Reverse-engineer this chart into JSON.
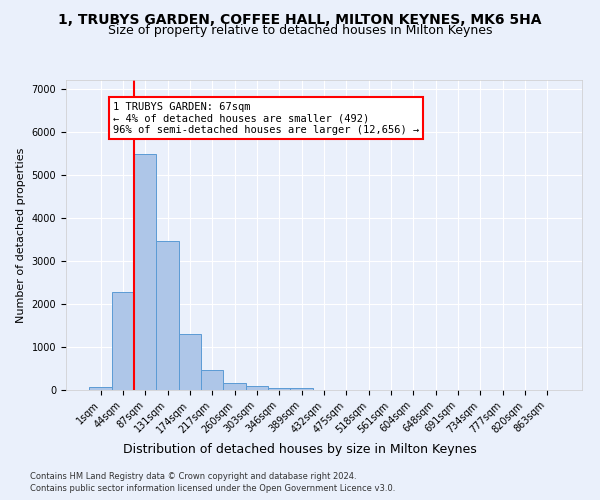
{
  "title_line1": "1, TRUBYS GARDEN, COFFEE HALL, MILTON KEYNES, MK6 5HA",
  "title_line2": "Size of property relative to detached houses in Milton Keynes",
  "xlabel": "Distribution of detached houses by size in Milton Keynes",
  "ylabel": "Number of detached properties",
  "footnote1": "Contains HM Land Registry data © Crown copyright and database right 2024.",
  "footnote2": "Contains public sector information licensed under the Open Government Licence v3.0.",
  "bar_labels": [
    "1sqm",
    "44sqm",
    "87sqm",
    "131sqm",
    "174sqm",
    "217sqm",
    "260sqm",
    "303sqm",
    "346sqm",
    "389sqm",
    "432sqm",
    "475sqm",
    "518sqm",
    "561sqm",
    "604sqm",
    "648sqm",
    "691sqm",
    "734sqm",
    "777sqm",
    "820sqm",
    "863sqm"
  ],
  "bar_values": [
    80,
    2280,
    5470,
    3460,
    1310,
    470,
    160,
    90,
    55,
    35,
    0,
    0,
    0,
    0,
    0,
    0,
    0,
    0,
    0,
    0,
    0
  ],
  "bar_color": "#aec6e8",
  "bar_edgecolor": "#5b9bd5",
  "vline_x": 1.5,
  "vline_color": "red",
  "annotation_text": "1 TRUBYS GARDEN: 67sqm\n← 4% of detached houses are smaller (492)\n96% of semi-detached houses are larger (12,656) →",
  "ylim": [
    0,
    7200
  ],
  "yticks": [
    0,
    1000,
    2000,
    3000,
    4000,
    5000,
    6000,
    7000
  ],
  "bg_color": "#eaf0fb",
  "grid_color": "#ffffff",
  "title1_fontsize": 10,
  "title2_fontsize": 9,
  "xlabel_fontsize": 9,
  "ylabel_fontsize": 8,
  "annot_fontsize": 7.5,
  "tick_fontsize": 7
}
